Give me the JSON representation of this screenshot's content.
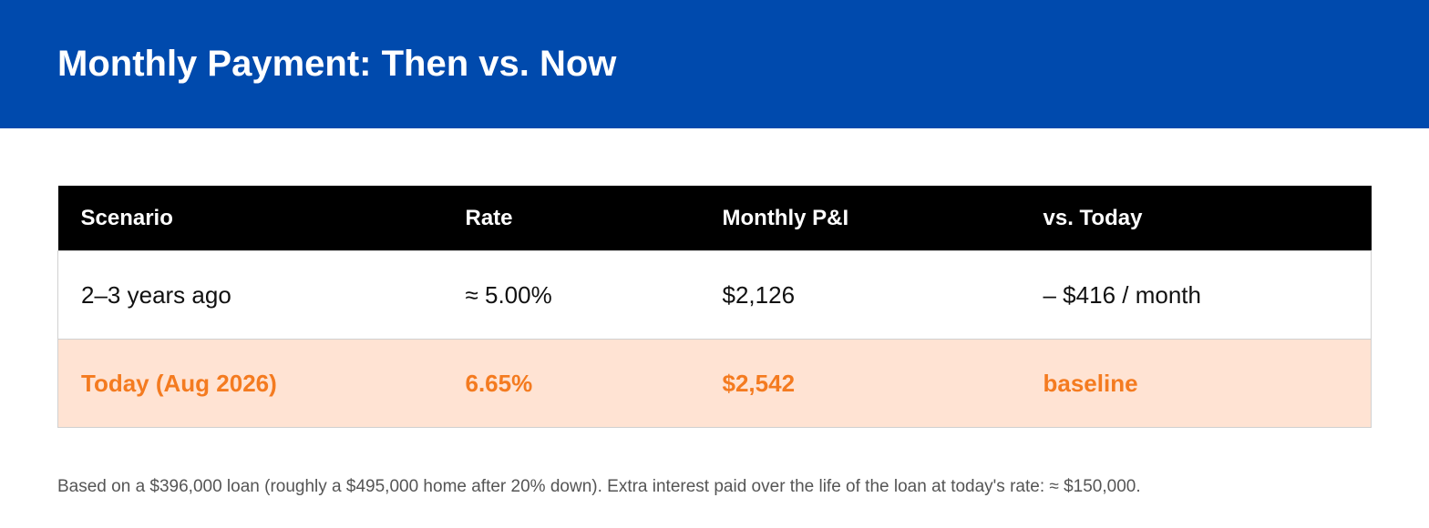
{
  "header": {
    "title": "Monthly Payment: Then vs. Now"
  },
  "table": {
    "columns": [
      "Scenario",
      "Rate",
      "Monthly P&I",
      "vs. Today"
    ],
    "rows": [
      [
        "2–3 years ago",
        "≈ 5.00%",
        "$2,126",
        "– $416 / month"
      ],
      [
        "Today (Aug 2026)",
        "6.65%",
        "$2,542",
        "baseline"
      ]
    ]
  },
  "note": "Based on a $396,000 loan (roughly a $495,000 home after 20% down). Extra interest paid over the life of the loan at today's rate: ≈ $150,000."
}
